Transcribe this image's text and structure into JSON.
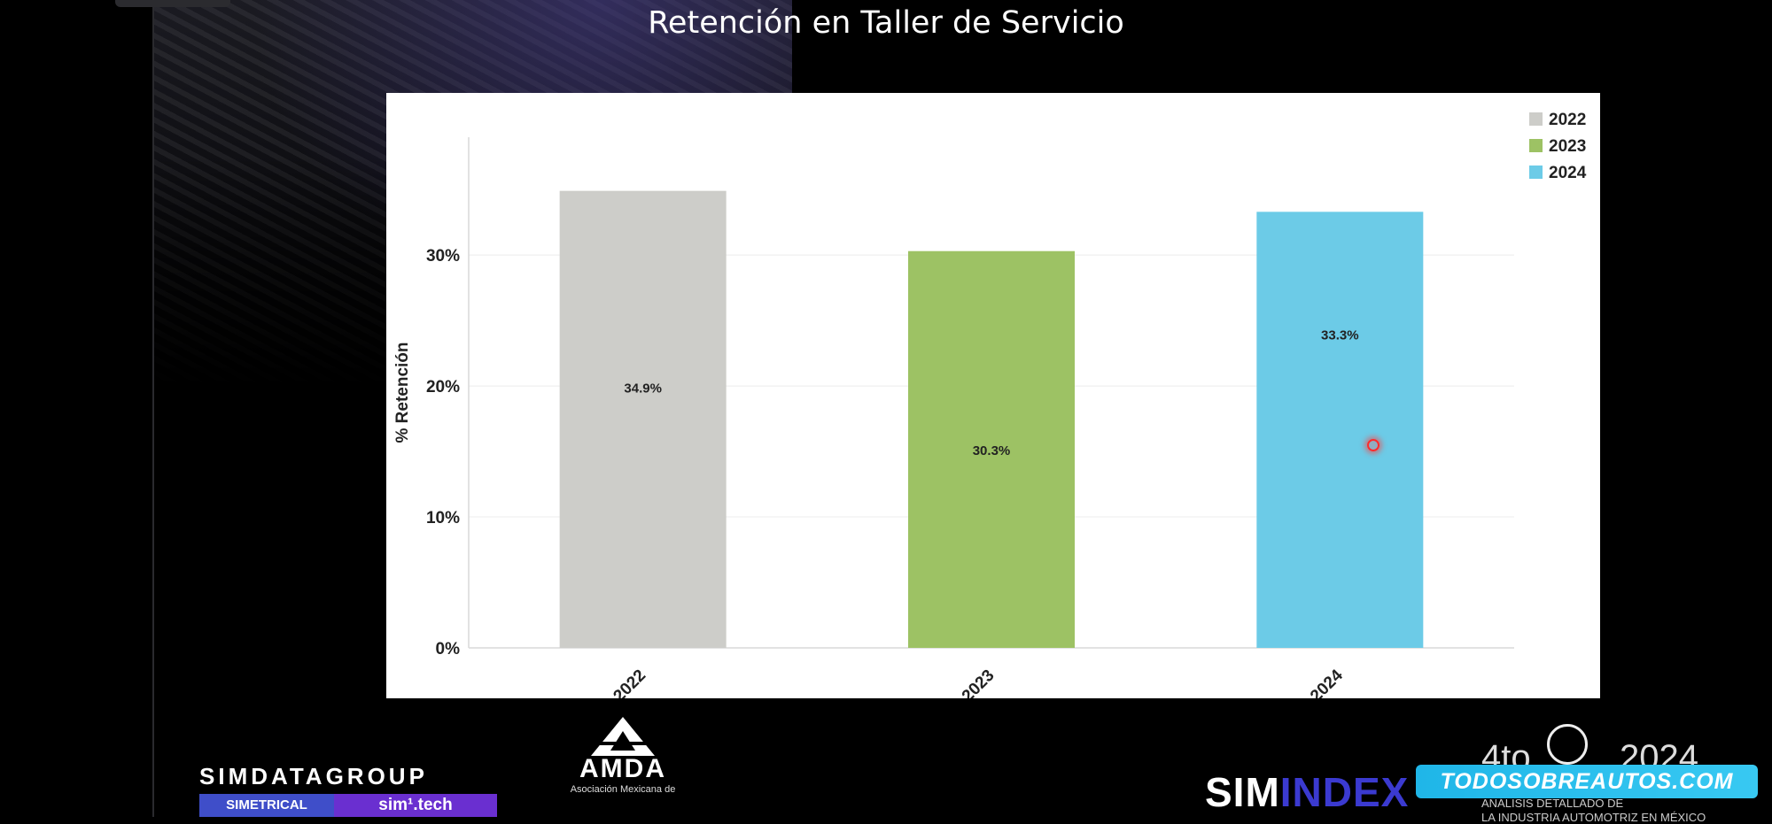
{
  "slide": {
    "title": "Retención en Taller de Servicio"
  },
  "chart_data": {
    "type": "bar",
    "title": "",
    "xlabel": "",
    "ylabel": "% Retención",
    "categories": [
      "2022",
      "2023",
      "2024"
    ],
    "values": [
      34.9,
      30.3,
      33.3
    ],
    "value_labels": [
      "34.9%",
      "30.3%",
      "33.3%"
    ],
    "colors": [
      "#cdcdc9",
      "#9dc264",
      "#6ccbe7"
    ],
    "ylim": [
      0,
      39
    ],
    "yticks": [
      0,
      10,
      20,
      30
    ],
    "ytick_labels": [
      "0%",
      "10%",
      "20%",
      "30%"
    ],
    "grid": true,
    "legend": {
      "position": "top-right",
      "entries": [
        {
          "label": "2022",
          "color": "#cdcdc9"
        },
        {
          "label": "2023",
          "color": "#9dc264"
        },
        {
          "label": "2024",
          "color": "#6ccbe7"
        }
      ]
    }
  },
  "footer": {
    "simdata": {
      "name": "SIMDATAGROUP",
      "left": "SIMETRICAL",
      "right": "sim¹.tech"
    },
    "amda": {
      "name": "AMDA",
      "sub": "Asociación Mexicana de"
    },
    "simindex": {
      "part1": "SIM",
      "part2": "INDEX"
    },
    "edition": {
      "ordinal": "4to",
      "year": "2024",
      "sub1": "ANÁLISIS DETALLADO DE",
      "sub2": "LA INDUSTRIA AUTOMOTRIZ EN MÉXICO"
    },
    "watermark": "TODOSOBREAUTOS.COM"
  }
}
